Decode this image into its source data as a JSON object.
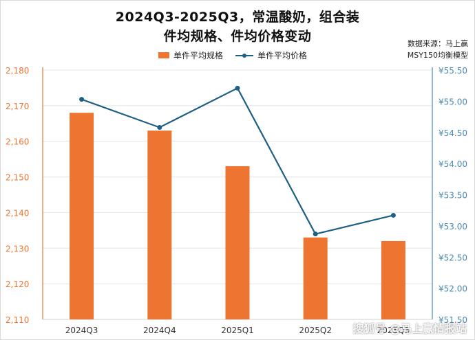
{
  "title_line1": "2024Q3-2025Q3，常温酸奶，组合装",
  "title_line2": "件均规格、件均价格变动",
  "source_line1": "数据来源：马上赢",
  "source_line2": "MSY150均衡模型",
  "watermark": "搜狐号 @马上赢情报站",
  "colors": {
    "bar": "#ED7531",
    "line": "#1D5F85",
    "left_axis": "#ED7531",
    "right_axis": "#4A8AAE"
  },
  "chart_data": {
    "type": "bar",
    "categories": [
      "2024Q3",
      "2024Q4",
      "2025Q1",
      "2025Q2",
      "2025Q3"
    ],
    "series": [
      {
        "name": "单件平均规格",
        "type": "bar",
        "axis": "left",
        "values": [
          2168,
          2163,
          2153,
          2133,
          2132
        ]
      },
      {
        "name": "单件平均价格",
        "type": "line",
        "axis": "right",
        "values": [
          55.03,
          54.58,
          55.21,
          52.87,
          53.17
        ]
      }
    ],
    "y_left": {
      "min": 2110,
      "max": 2180,
      "ticks": [
        "2,110",
        "2,120",
        "2,130",
        "2,140",
        "2,150",
        "2,160",
        "2,170",
        "2,180"
      ]
    },
    "y_right": {
      "min": 51.5,
      "max": 55.5,
      "ticks": [
        "¥51.50",
        "¥52.00",
        "¥52.50",
        "¥53.00",
        "¥53.50",
        "¥54.00",
        "¥54.50",
        "¥55.00",
        "¥55.50"
      ]
    },
    "grid": true,
    "legend": "top"
  }
}
